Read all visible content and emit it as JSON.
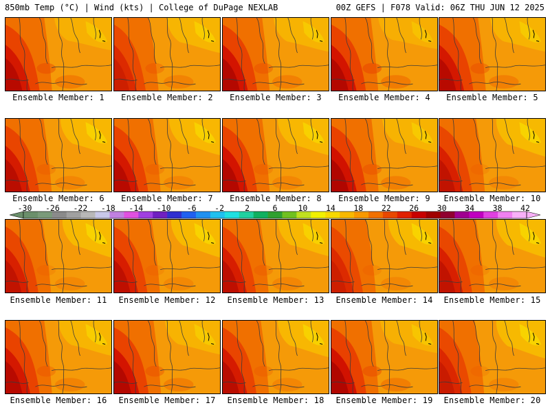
{
  "header": {
    "left": "850mb Temp (°C) | Wind (kts) | College of DuPage NEXLAB",
    "right": "00Z GEFS | F078 Valid: 06Z THU JUN 12 2025"
  },
  "members": [
    {
      "label": "Ensemble Member: 1",
      "intensity": 0.85,
      "warm_shift": 0.6
    },
    {
      "label": "Ensemble Member: 2",
      "intensity": 0.55,
      "warm_shift": 0.4
    },
    {
      "label": "Ensemble Member: 3",
      "intensity": 0.9,
      "warm_shift": 0.5
    },
    {
      "label": "Ensemble Member: 4",
      "intensity": 0.9,
      "warm_shift": 0.7
    },
    {
      "label": "Ensemble Member: 5",
      "intensity": 0.85,
      "warm_shift": 0.5
    },
    {
      "label": "Ensemble Member: 6",
      "intensity": 0.8,
      "warm_shift": 0.3
    },
    {
      "label": "Ensemble Member: 7",
      "intensity": 0.85,
      "warm_shift": 0.3
    },
    {
      "label": "Ensemble Member: 8",
      "intensity": 0.9,
      "warm_shift": 0.3
    },
    {
      "label": "Ensemble Member: 9",
      "intensity": 0.95,
      "warm_shift": 0.5
    },
    {
      "label": "Ensemble Member: 10",
      "intensity": 0.7,
      "warm_shift": 0.2
    },
    {
      "label": "Ensemble Member: 11",
      "intensity": 0.7,
      "warm_shift": 0.2
    },
    {
      "label": "Ensemble Member: 12",
      "intensity": 0.75,
      "warm_shift": 0.2
    },
    {
      "label": "Ensemble Member: 13",
      "intensity": 0.75,
      "warm_shift": 0.3
    },
    {
      "label": "Ensemble Member: 14",
      "intensity": 0.55,
      "warm_shift": 0.2
    },
    {
      "label": "Ensemble Member: 15",
      "intensity": 0.7,
      "warm_shift": 0.2
    },
    {
      "label": "Ensemble Member: 16",
      "intensity": 0.85,
      "warm_shift": 0.4
    },
    {
      "label": "Ensemble Member: 17",
      "intensity": 0.9,
      "warm_shift": 0.5
    },
    {
      "label": "Ensemble Member: 18",
      "intensity": 0.8,
      "warm_shift": 0.3
    },
    {
      "label": "Ensemble Member: 19",
      "intensity": 0.95,
      "warm_shift": 0.6
    },
    {
      "label": "Ensemble Member: 20",
      "intensity": 0.6,
      "warm_shift": 0.2
    }
  ],
  "colorbar": {
    "labels": [
      "-30",
      "-26",
      "-22",
      "-18",
      "-14",
      "-10",
      "-6",
      "-2",
      "2",
      "6",
      "10",
      "14",
      "18",
      "22",
      "26",
      "30",
      "34",
      "38",
      "42"
    ],
    "colors": [
      "#6b8f6b",
      "#7a9a7a",
      "#8a8a8a",
      "#a0a0a0",
      "#b8b8b8",
      "#c8c8e8",
      "#c080e0",
      "#e050e0",
      "#a040e0",
      "#7020c0",
      "#3030d0",
      "#2060f0",
      "#2090f0",
      "#20c0f0",
      "#20e0e0",
      "#20d0a0",
      "#10b060",
      "#30a030",
      "#70c020",
      "#c0e020",
      "#f0f000",
      "#f8d800",
      "#f8b800",
      "#f89800",
      "#f07000",
      "#e84800",
      "#e02000",
      "#c80000",
      "#a00000",
      "#900030",
      "#a00090",
      "#c000c0",
      "#e040e0",
      "#f080f0",
      "#f8b0f8"
    ]
  },
  "map_colors": {
    "yellow": "#f8e000",
    "light_orange": "#f8c000",
    "orange": "#f59a08",
    "dark_orange": "#f07000",
    "red_orange": "#e84000",
    "red": "#d01000",
    "dark_red": "#a00000",
    "contour": "#3a3a3a"
  }
}
